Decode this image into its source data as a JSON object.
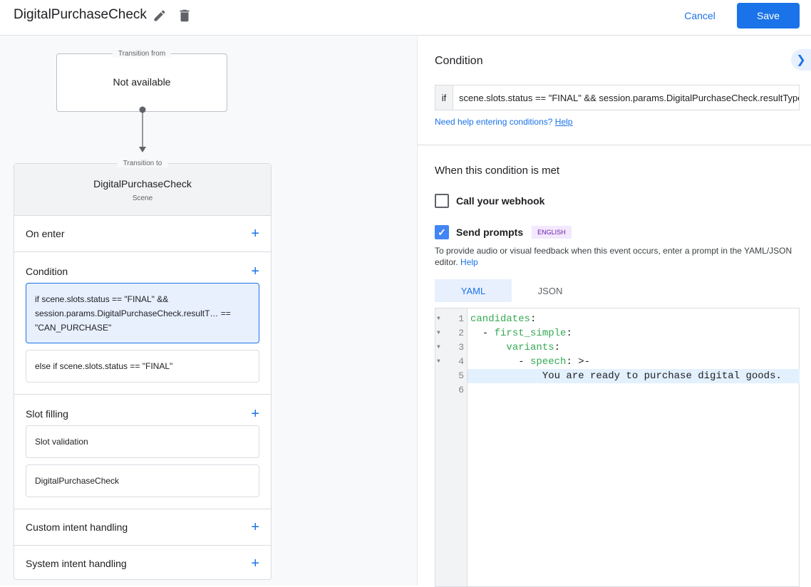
{
  "header": {
    "title": "DigitalPurchaseCheck",
    "cancel": "Cancel",
    "save": "Save",
    "edit_icon": "pencil-icon",
    "delete_icon": "trash-icon"
  },
  "flow": {
    "from": {
      "legend": "Transition from",
      "value": "Not available"
    },
    "to": {
      "legend": "Transition to",
      "name": "DigitalPurchaseCheck",
      "type": "Scene"
    },
    "sections": {
      "on_enter": "On enter",
      "condition": {
        "label": "Condition",
        "items": [
          "if scene.slots.status == \"FINAL\" && session.params.DigitalPurchaseCheck.resultT… == \"CAN_PURCHASE\"",
          "else if scene.slots.status == \"FINAL\""
        ]
      },
      "slot_filling": {
        "label": "Slot filling",
        "items": [
          "Slot validation",
          "DigitalPurchaseCheck"
        ]
      },
      "custom_intent": "Custom intent handling",
      "system_intent": "System intent handling"
    }
  },
  "panel": {
    "title": "Condition",
    "if_label": "if",
    "condition_value": "scene.slots.status == \"FINAL\" && session.params.DigitalPurchaseCheck.resultType == \"CAN_PURCHASE\"",
    "help_text": "Need help entering conditions?",
    "help_link": "Help",
    "met_title": "When this condition is met",
    "webhook": {
      "label": "Call your webhook",
      "checked": false
    },
    "prompts": {
      "label": "Send prompts",
      "checked": true,
      "badge": "ENGLISH"
    },
    "desc": "To provide audio or visual feedback when this event occurs, enter a prompt in the YAML/JSON editor.",
    "desc_link": "Help",
    "tabs": [
      {
        "label": "YAML",
        "active": true
      },
      {
        "label": "JSON",
        "active": false
      }
    ],
    "editor": {
      "lines": [
        {
          "n": "1",
          "fold": true,
          "parts": [
            [
              "k",
              "candidates"
            ],
            [
              "p",
              ":"
            ]
          ]
        },
        {
          "n": "2",
          "fold": true,
          "parts": [
            [
              "p",
              "  - "
            ],
            [
              "k",
              "first_simple"
            ],
            [
              "p",
              ":"
            ]
          ]
        },
        {
          "n": "3",
          "fold": true,
          "parts": [
            [
              "p",
              "      "
            ],
            [
              "k",
              "variants"
            ],
            [
              "p",
              ":"
            ]
          ]
        },
        {
          "n": "4",
          "fold": true,
          "parts": [
            [
              "p",
              "        - "
            ],
            [
              "k",
              "speech"
            ],
            [
              "p",
              ": >-"
            ]
          ]
        },
        {
          "n": "5",
          "fold": false,
          "highlight": true,
          "parts": [
            [
              "p",
              "            You are ready to purchase digital goods."
            ]
          ]
        },
        {
          "n": "6",
          "fold": false,
          "parts": []
        }
      ]
    }
  },
  "colors": {
    "accent": "#1a73e8",
    "selected_bg": "#e8f0fe",
    "yaml_key": "#34a853",
    "badge_bg": "#f3e8fd",
    "badge_text": "#681da8"
  }
}
